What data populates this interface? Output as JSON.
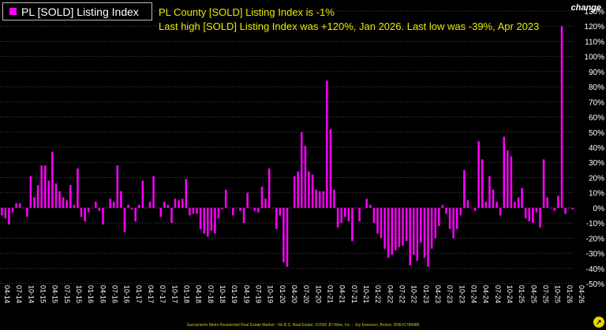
{
  "legend": {
    "label": "PL [SOLD] Listing Index",
    "color": "#ff00ff"
  },
  "subtitle": {
    "line1": "PL County [SOLD] Listing Index is -1%",
    "line2": "Last high [SOLD] Listing Index was +120%, Jan 2026. Last low was -39%, Apr 2023"
  },
  "axis_unit_label": "change",
  "footer": "Sacramento Metro Residential Real Estate Market - No B.S. Real Estate, ©2026 JD Wise, Inc. - Joy Emerson, Broker, DRE#1788486",
  "logo_icon": "arrow-logo-icon",
  "chart_data": {
    "type": "bar",
    "title": "PL County [SOLD] Listing Index is -1%",
    "series": [
      {
        "name": "PL [SOLD] Listing Index",
        "color": "#ff00ff"
      }
    ],
    "yticks": [
      "-50%",
      "-40%",
      "-30%",
      "-20%",
      "-10%",
      "0%",
      "10%",
      "20%",
      "30%",
      "40%",
      "50%",
      "60%",
      "70%",
      "80%",
      "90%",
      "100%",
      "110%",
      "120%",
      "130%"
    ],
    "ylim": [
      -50,
      130
    ],
    "xtick_labels": [
      "04-14",
      "07-14",
      "10-14",
      "01-15",
      "04-15",
      "07-15",
      "10-15",
      "01-16",
      "04-16",
      "07-16",
      "10-16",
      "01-17",
      "04-17",
      "07-17",
      "10-17",
      "01-18",
      "04-18",
      "07-18",
      "10-18",
      "01-19",
      "04-19",
      "07-19",
      "10-19",
      "01-20",
      "04-20",
      "07-20",
      "10-20",
      "01-21",
      "04-21",
      "07-21",
      "10-21",
      "01-22",
      "04-22",
      "07-22",
      "10-22",
      "01-23",
      "04-23",
      "07-23",
      "10-23",
      "01-24",
      "04-24",
      "07-24",
      "10-24",
      "01-25",
      "04-25",
      "07-25",
      "10-25",
      "01-26",
      "04-26"
    ],
    "values": [
      -5,
      -7,
      -11,
      -3,
      3,
      3,
      0,
      -6,
      21,
      7,
      15,
      28,
      28,
      18,
      37,
      16,
      11,
      7,
      5,
      15,
      2,
      26,
      -6,
      -9,
      -3,
      0,
      4,
      -2,
      -11,
      0,
      6,
      4,
      28,
      11,
      -16,
      2,
      -1,
      -9,
      2,
      18,
      0,
      4,
      21,
      0,
      -6,
      4,
      2,
      -10,
      6,
      5,
      6,
      19,
      -5,
      -4,
      -4,
      -14,
      -17,
      -19,
      -15,
      -17,
      -7,
      -1,
      12,
      0,
      -5,
      0,
      -2,
      -10,
      10,
      0,
      -2,
      -3,
      14,
      6,
      26,
      0,
      -14,
      -5,
      -36,
      -39,
      0,
      21,
      24,
      50,
      41,
      24,
      22,
      12,
      11,
      11,
      84,
      52,
      12,
      -13,
      -10,
      -6,
      -9,
      -22,
      0,
      -9,
      0,
      6,
      2,
      -10,
      -17,
      -20,
      -27,
      -33,
      -31,
      -28,
      -26,
      -25,
      -22,
      -38,
      -31,
      -35,
      -23,
      -33,
      -39,
      -27,
      -20,
      -12,
      2,
      -4,
      -14,
      -20,
      -14,
      -5,
      25,
      5,
      0,
      -2,
      44,
      32,
      4,
      21,
      12,
      4,
      -5,
      47,
      38,
      34,
      4,
      7,
      13,
      -7,
      -9,
      -10,
      -3,
      -13,
      32,
      7,
      0,
      -2,
      8,
      120,
      -4,
      0,
      -1
    ]
  }
}
